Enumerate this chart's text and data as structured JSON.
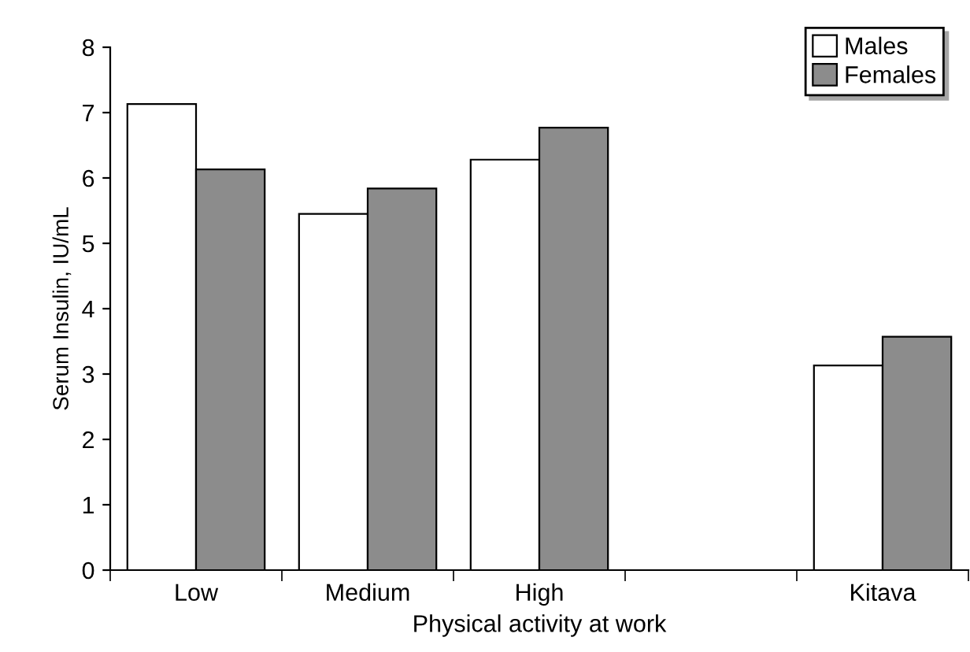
{
  "chart_data": {
    "type": "bar",
    "xlabel": "Physical activity at work",
    "ylabel": "Serum Insulin, IU/mL",
    "categories": [
      "Low",
      "Medium",
      "High",
      null,
      "Kitava"
    ],
    "series": [
      {
        "name": "Males",
        "color": "#ffffff",
        "values": [
          7.13,
          5.45,
          6.28,
          null,
          3.13
        ]
      },
      {
        "name": "Females",
        "color": "#8c8c8c",
        "values": [
          6.13,
          5.84,
          6.77,
          null,
          3.57
        ]
      }
    ],
    "ylim": [
      0,
      8
    ],
    "yticks": [
      0,
      1,
      2,
      3,
      4,
      5,
      6,
      7,
      8
    ],
    "grid": false,
    "legend": "top right"
  }
}
